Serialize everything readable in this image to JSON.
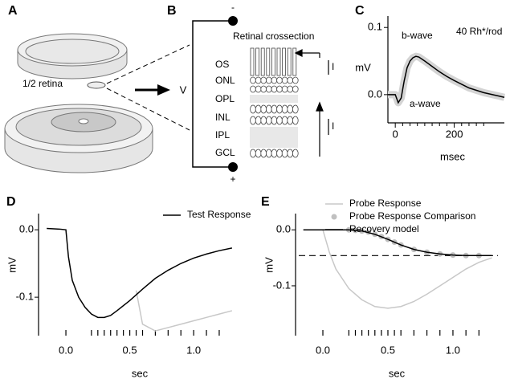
{
  "panels": [
    "A",
    "B",
    "C",
    "D",
    "E"
  ],
  "diagram_a": {
    "label": "1/2 retina"
  },
  "diagram_b": {
    "title": "Retinal crossection",
    "layers": [
      "OS",
      "ONL",
      "OPL",
      "INL",
      "IPL",
      "GCL"
    ],
    "minus": "-",
    "plus": "+",
    "voltage": "V",
    "currents": [
      "I",
      "I"
    ]
  },
  "chart_data": [
    {
      "type": "line",
      "ylabel": "mV",
      "xlabel": "msec",
      "annotations": [
        "b-wave",
        "a-wave",
        "40 Rh*/rod"
      ],
      "xlim": [
        -25,
        370
      ],
      "xticks": [
        0,
        200
      ],
      "xminorticks": [
        25,
        50,
        75,
        100,
        125,
        150,
        175,
        225,
        250,
        275,
        300
      ],
      "ylim": [
        -0.042,
        0.117
      ],
      "yticks": [
        {
          "value": 0.0,
          "label": "0.0"
        },
        {
          "value": 0.1,
          "label": "0.1"
        }
      ],
      "series": [
        {
          "color": "#000000",
          "band_color": "#d4d4d4",
          "x": [
            -25,
            0,
            10,
            20,
            30,
            40,
            50,
            60,
            70,
            80,
            100,
            125,
            150,
            175,
            200,
            250,
            300,
            350,
            370
          ],
          "values": [
            0,
            0,
            -0.012,
            -0.005,
            0.02,
            0.04,
            0.05,
            0.055,
            0.057,
            0.056,
            0.05,
            0.042,
            0.034,
            0.027,
            0.021,
            0.01,
            0.003,
            -0.002,
            -0.004
          ]
        }
      ]
    },
    {
      "type": "line",
      "ylabel": "mV",
      "xlabel": "sec",
      "xlim": [
        -0.214,
        1.37
      ],
      "xticks": [
        {
          "value": 0.0,
          "label": "0.0"
        },
        {
          "value": 0.5,
          "label": "0.5"
        },
        {
          "value": 1.0,
          "label": "1.0"
        }
      ],
      "ylim": [
        -0.157,
        0.024
      ],
      "yticks": [
        {
          "value": 0.0,
          "label": "0.0"
        },
        {
          "value": -0.1,
          "label": "-0.1"
        }
      ],
      "flashes": [
        0.0,
        0.2,
        0.25,
        0.3,
        0.35,
        0.4,
        0.45,
        0.5,
        0.55,
        0.6,
        0.7,
        0.8,
        0.9,
        1.0,
        1.1,
        1.2
      ],
      "series": [
        {
          "color": "#c8c8c8",
          "x": [
            0.55,
            0.6,
            0.7,
            0.8,
            0.9,
            1.0,
            1.1,
            1.2,
            1.3
          ],
          "values": [
            -0.09,
            -0.14,
            -0.15,
            -0.145,
            -0.14,
            -0.135,
            -0.13,
            -0.125,
            -0.12
          ]
        },
        {
          "name": "Test Response",
          "color": "#000000",
          "x": [
            -0.15,
            -0.05,
            0,
            0.02,
            0.05,
            0.1,
            0.15,
            0.2,
            0.25,
            0.3,
            0.35,
            0.4,
            0.5,
            0.6,
            0.7,
            0.8,
            0.9,
            1.0,
            1.1,
            1.2,
            1.3
          ],
          "values": [
            0.002,
            0.001,
            0,
            -0.04,
            -0.075,
            -0.1,
            -0.115,
            -0.125,
            -0.13,
            -0.13,
            -0.127,
            -0.12,
            -0.105,
            -0.088,
            -0.072,
            -0.06,
            -0.05,
            -0.042,
            -0.036,
            -0.031,
            -0.027
          ]
        }
      ]
    },
    {
      "type": "line",
      "ylabel": "mV",
      "xlabel": "sec",
      "xlim": [
        -0.21,
        1.346
      ],
      "xticks": [
        {
          "value": 0.0,
          "label": "0.0"
        },
        {
          "value": 0.5,
          "label": "0.5"
        },
        {
          "value": 1.0,
          "label": "1.0"
        }
      ],
      "ylim": [
        -0.189,
        0.029
      ],
      "yticks": [
        {
          "value": 0.0,
          "label": "0.0"
        },
        {
          "value": -0.1,
          "label": "-0.1"
        }
      ],
      "flashes": [
        0.0,
        0.2,
        0.25,
        0.3,
        0.35,
        0.4,
        0.45,
        0.5,
        0.55,
        0.6,
        0.7,
        0.8,
        0.9,
        1.0,
        1.1,
        1.2
      ],
      "reference_line": -0.046,
      "series": [
        {
          "name": "Probe Response",
          "color": "#c8c8c8",
          "x": [
            -0.15,
            0,
            0.05,
            0.1,
            0.2,
            0.3,
            0.4,
            0.5,
            0.6,
            0.7,
            0.8,
            0.9,
            1.0,
            1.1,
            1.2,
            1.3
          ],
          "values": [
            0,
            0,
            -0.04,
            -0.07,
            -0.105,
            -0.125,
            -0.137,
            -0.14,
            -0.137,
            -0.128,
            -0.115,
            -0.1,
            -0.085,
            -0.07,
            -0.058,
            -0.05
          ]
        },
        {
          "name": "Probe Response Comparison",
          "color": "#c0c0c0",
          "marker": "dot",
          "x": [
            0.2,
            0.25,
            0.3,
            0.35,
            0.4,
            0.45,
            0.5,
            0.55,
            0.6,
            0.7,
            0.8,
            0.9,
            1.0,
            1.1,
            1.2
          ],
          "values": [
            0,
            -0.001,
            -0.002,
            -0.004,
            -0.008,
            -0.012,
            -0.017,
            -0.022,
            -0.027,
            -0.035,
            -0.04,
            -0.043,
            -0.045,
            -0.046,
            -0.046
          ]
        },
        {
          "name": "Recovery model",
          "color": "#000000",
          "x": [
            -0.15,
            0,
            0.2,
            0.3,
            0.4,
            0.5,
            0.6,
            0.7,
            0.8,
            0.9,
            1.0,
            1.1,
            1.2,
            1.3
          ],
          "values": [
            0,
            0,
            0,
            -0.002,
            -0.008,
            -0.017,
            -0.027,
            -0.035,
            -0.04,
            -0.043,
            -0.045,
            -0.046,
            -0.046,
            -0.046
          ]
        }
      ]
    }
  ]
}
